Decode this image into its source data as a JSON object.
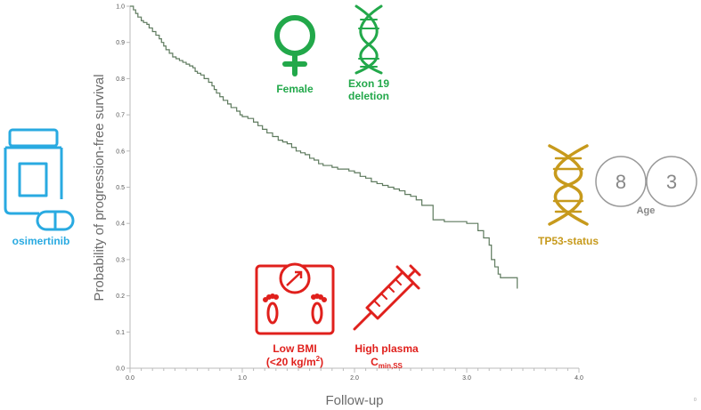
{
  "chart_data": {
    "type": "line",
    "xlabel": "Follow-up",
    "ylabel": "Probability of progression-free survival",
    "xlim": [
      0,
      4
    ],
    "ylim": [
      0,
      1
    ],
    "x_ticks": [
      "0.0",
      "1.0",
      "2.0",
      "3.0",
      "4.0"
    ],
    "y_ticks": [
      "0.0",
      "0.1",
      "0.2",
      "0.3",
      "0.4",
      "0.5",
      "0.6",
      "0.7",
      "0.8",
      "0.9",
      "1.0"
    ],
    "grid": false,
    "series": [
      {
        "step": true,
        "x": [
          0,
          0.03,
          0.05,
          0.07,
          0.1,
          0.12,
          0.15,
          0.17,
          0.2,
          0.23,
          0.26,
          0.28,
          0.3,
          0.32,
          0.35,
          0.38,
          0.41,
          0.44,
          0.47,
          0.5,
          0.53,
          0.56,
          0.58,
          0.6,
          0.63,
          0.66,
          0.7,
          0.73,
          0.75,
          0.77,
          0.8,
          0.83,
          0.87,
          0.9,
          0.95,
          0.98,
          1.0,
          1.05,
          1.1,
          1.14,
          1.18,
          1.22,
          1.27,
          1.32,
          1.36,
          1.4,
          1.44,
          1.48,
          1.52,
          1.56,
          1.6,
          1.64,
          1.68,
          1.72,
          1.76,
          1.8,
          1.85,
          1.9,
          1.95,
          2.0,
          2.05,
          2.1,
          2.15,
          2.2,
          2.25,
          2.3,
          2.35,
          2.4,
          2.45,
          2.5,
          2.55,
          2.6,
          2.7,
          2.8,
          2.9,
          3.0,
          3.1,
          3.15,
          3.2,
          3.22,
          3.25,
          3.28,
          3.3,
          3.42,
          3.45
        ],
        "y": [
          1.0,
          0.99,
          0.98,
          0.97,
          0.96,
          0.955,
          0.95,
          0.94,
          0.93,
          0.92,
          0.91,
          0.9,
          0.89,
          0.88,
          0.87,
          0.86,
          0.855,
          0.85,
          0.845,
          0.84,
          0.835,
          0.83,
          0.82,
          0.815,
          0.81,
          0.8,
          0.79,
          0.78,
          0.77,
          0.76,
          0.75,
          0.74,
          0.73,
          0.72,
          0.71,
          0.7,
          0.695,
          0.69,
          0.68,
          0.67,
          0.66,
          0.65,
          0.64,
          0.63,
          0.625,
          0.62,
          0.61,
          0.6,
          0.595,
          0.59,
          0.58,
          0.575,
          0.565,
          0.56,
          0.56,
          0.555,
          0.55,
          0.55,
          0.545,
          0.54,
          0.53,
          0.525,
          0.515,
          0.51,
          0.505,
          0.5,
          0.495,
          0.49,
          0.48,
          0.475,
          0.465,
          0.45,
          0.41,
          0.405,
          0.405,
          0.4,
          0.38,
          0.36,
          0.34,
          0.3,
          0.28,
          0.26,
          0.25,
          0.25,
          0.22
        ],
        "color": "#5e7a5e"
      }
    ]
  },
  "labels": {
    "female": "Female",
    "exon_line1": "Exon 19",
    "exon_line2": "deletion",
    "tp53": "TP53-status",
    "age": "Age",
    "age_digit_1": "8",
    "age_digit_2": "3",
    "osimertinib": "osimertinib",
    "bmi_line1": "Low BMI",
    "bmi_line2_pre": "(<20 kg/m",
    "bmi_line2_sup": "2",
    "bmi_line2_post": ")",
    "plasma_line1": "High plasma",
    "plasma_line2_main": "C",
    "plasma_line2_sub": "min,SS",
    "corner_mark": "0"
  },
  "colors": {
    "green": "#22a84a",
    "gold": "#c79a1c",
    "blue": "#29aae1",
    "red": "#e0201c",
    "gray": "#888888",
    "curve": "#5e7a5e"
  },
  "icons": [
    "female-symbol-icon",
    "dna-icon",
    "medicine-bottle-icon",
    "pill-icon",
    "bathroom-scale-icon",
    "syringe-icon"
  ]
}
